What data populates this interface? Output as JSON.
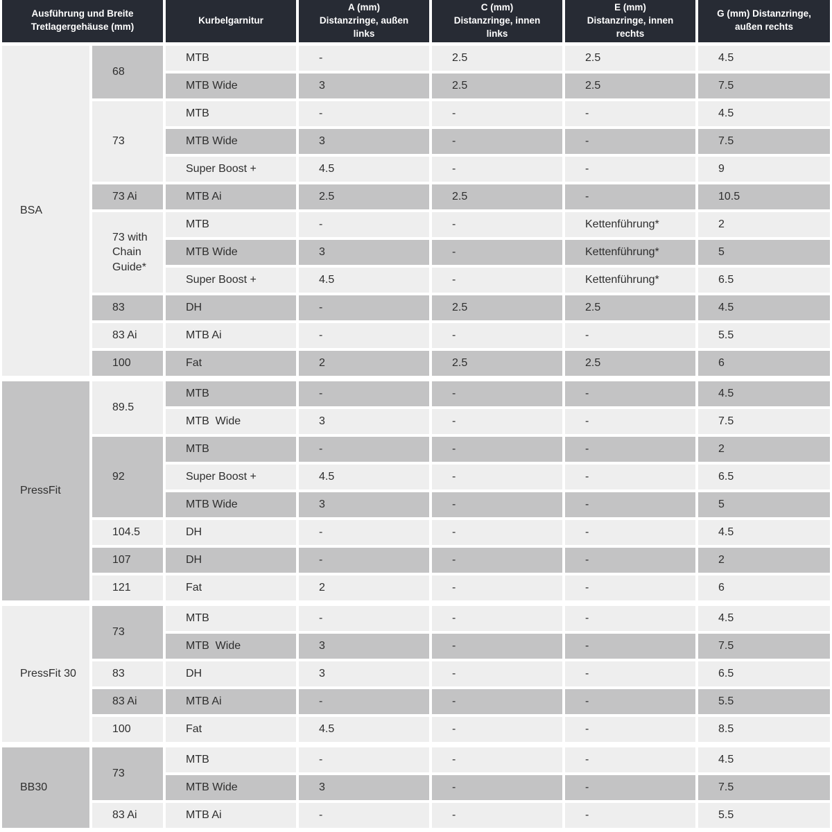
{
  "table": {
    "headers": {
      "ausfuehrung": "Ausführung und Breite\nTretlagergehäuse (mm)",
      "kurbelgarnitur": "Kurbelgarnitur",
      "a": "A (mm)\nDistanzringe, außen\nlinks",
      "c": "C (mm)\nDistanzringe, innen\nlinks",
      "e": "E (mm)\nDistanzringe, innen\nrechts",
      "g": "G (mm) Distanzringe,\naußen rechts"
    },
    "sections": [
      {
        "label": "BSA",
        "shade": "light",
        "groups": [
          {
            "width": "68",
            "shade": "gray",
            "rows": [
              {
                "crank": "MTB",
                "a": "-",
                "c": "2.5",
                "e": "2.5",
                "g": "4.5",
                "shade": "light"
              },
              {
                "crank": "MTB Wide",
                "a": "3",
                "c": "2.5",
                "e": "2.5",
                "g": "7.5",
                "shade": "gray"
              }
            ]
          },
          {
            "width": "73",
            "shade": "light",
            "rows": [
              {
                "crank": "MTB",
                "a": "-",
                "c": "-",
                "e": "-",
                "g": "4.5",
                "shade": "light"
              },
              {
                "crank": "MTB Wide",
                "a": "3",
                "c": "-",
                "e": "-",
                "g": "7.5",
                "shade": "gray"
              },
              {
                "crank": "Super Boost +",
                "a": "4.5",
                "c": "-",
                "e": "-",
                "g": "9",
                "shade": "light"
              }
            ]
          },
          {
            "width": "73 Ai",
            "shade": "gray",
            "rows": [
              {
                "crank": "MTB Ai",
                "a": "2.5",
                "c": "2.5",
                "e": "-",
                "g": "10.5",
                "shade": "gray"
              }
            ]
          },
          {
            "width": "73 with Chain Guide*",
            "shade": "light",
            "rows": [
              {
                "crank": "MTB",
                "a": "-",
                "c": "-",
                "e": "Kettenführung*",
                "g": "2",
                "shade": "light"
              },
              {
                "crank": "MTB Wide",
                "a": "3",
                "c": "-",
                "e": "Kettenführung*",
                "g": "5",
                "shade": "gray"
              },
              {
                "crank": "Super Boost +",
                "a": "4.5",
                "c": "-",
                "e": "Kettenführung*",
                "g": "6.5",
                "shade": "light"
              }
            ]
          },
          {
            "width": "83",
            "shade": "gray",
            "rows": [
              {
                "crank": "DH",
                "a": "-",
                "c": "2.5",
                "e": "2.5",
                "g": "4.5",
                "shade": "gray"
              }
            ]
          },
          {
            "width": "83 Ai",
            "shade": "light",
            "rows": [
              {
                "crank": "MTB Ai",
                "a": "-",
                "c": "-",
                "e": "-",
                "g": "5.5",
                "shade": "light"
              }
            ]
          },
          {
            "width": "100",
            "shade": "gray",
            "rows": [
              {
                "crank": "Fat",
                "a": "2",
                "c": "2.5",
                "e": "2.5",
                "g": "6",
                "shade": "gray"
              }
            ]
          }
        ]
      },
      {
        "label": "PressFit",
        "shade": "gray",
        "groups": [
          {
            "width": "89.5",
            "shade": "light",
            "rows": [
              {
                "crank": "MTB",
                "a": "-",
                "c": "-",
                "e": "-",
                "g": "4.5",
                "shade": "gray"
              },
              {
                "crank": "MTB  Wide",
                "a": "3",
                "c": "-",
                "e": "-",
                "g": "7.5",
                "shade": "light"
              }
            ]
          },
          {
            "width": "92",
            "shade": "gray",
            "rows": [
              {
                "crank": "MTB",
                "a": "-",
                "c": "-",
                "e": "-",
                "g": "2",
                "shade": "gray"
              },
              {
                "crank": "Super Boost +",
                "a": "4.5",
                "c": "-",
                "e": "-",
                "g": "6.5",
                "shade": "light"
              },
              {
                "crank": "MTB Wide",
                "a": "3",
                "c": "-",
                "e": "-",
                "g": "5",
                "shade": "gray"
              }
            ]
          },
          {
            "width": "104.5",
            "shade": "light",
            "rows": [
              {
                "crank": "DH",
                "a": "-",
                "c": "-",
                "e": "-",
                "g": "4.5",
                "shade": "light"
              }
            ]
          },
          {
            "width": "107",
            "shade": "gray",
            "rows": [
              {
                "crank": "DH",
                "a": "-",
                "c": "-",
                "e": "-",
                "g": "2",
                "shade": "gray"
              }
            ]
          },
          {
            "width": "121",
            "shade": "light",
            "rows": [
              {
                "crank": "Fat",
                "a": "2",
                "c": "-",
                "e": "-",
                "g": "6",
                "shade": "light"
              }
            ]
          }
        ]
      },
      {
        "label": "PressFit 30",
        "shade": "light",
        "groups": [
          {
            "width": "73",
            "shade": "gray",
            "rows": [
              {
                "crank": "MTB",
                "a": "-",
                "c": "-",
                "e": "-",
                "g": "4.5",
                "shade": "light"
              },
              {
                "crank": "MTB  Wide",
                "a": "3",
                "c": "-",
                "e": "-",
                "g": "7.5",
                "shade": "gray"
              }
            ]
          },
          {
            "width": "83",
            "shade": "light",
            "rows": [
              {
                "crank": "DH",
                "a": "3",
                "c": "-",
                "e": "-",
                "g": "6.5",
                "shade": "light"
              }
            ]
          },
          {
            "width": "83 Ai",
            "shade": "gray",
            "rows": [
              {
                "crank": "MTB Ai",
                "a": "-",
                "c": "-",
                "e": "-",
                "g": "5.5",
                "shade": "gray"
              }
            ]
          },
          {
            "width": "100",
            "shade": "light",
            "rows": [
              {
                "crank": "Fat",
                "a": "4.5",
                "c": "-",
                "e": "-",
                "g": "8.5",
                "shade": "light"
              }
            ]
          }
        ]
      },
      {
        "label": "BB30",
        "shade": "gray",
        "groups": [
          {
            "width": "73",
            "shade": "gray",
            "rows": [
              {
                "crank": "MTB",
                "a": "-",
                "c": "-",
                "e": "-",
                "g": "4.5",
                "shade": "light"
              },
              {
                "crank": "MTB Wide",
                "a": "3",
                "c": "-",
                "e": "-",
                "g": "7.5",
                "shade": "gray"
              }
            ]
          },
          {
            "width": "83 Ai",
            "shade": "light",
            "rows": [
              {
                "crank": "MTB Ai",
                "a": "-",
                "c": "-",
                "e": "-",
                "g": "5.5",
                "shade": "light"
              }
            ]
          }
        ]
      }
    ]
  },
  "colors": {
    "header_bg": "#272b34",
    "header_text": "#ffffff",
    "row_light": "#eeeeee",
    "row_gray": "#c3c3c4",
    "separator": "#ffffff",
    "body_text": "#2e2e2e"
  }
}
